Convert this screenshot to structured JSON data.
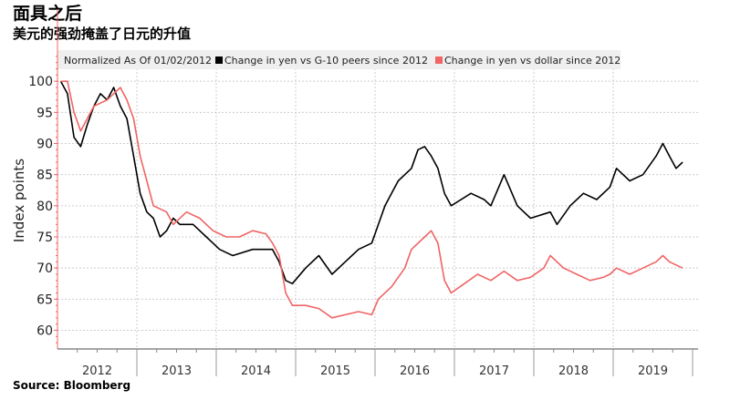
{
  "title": "面具之后",
  "subtitle": "美元的强劲掩盖了日元的升值",
  "source": "Source: Bloomberg",
  "chart_data": {
    "type": "line",
    "title": "面具之后",
    "subtitle": "美元的强劲掩盖了日元的升值",
    "ylabel": "Index points",
    "xlabel": "",
    "legend_note": "Normalized As Of 01/02/2012",
    "legend_position": "top",
    "ylim": [
      57,
      105
    ],
    "yticks": [
      60,
      65,
      70,
      75,
      80,
      85,
      90,
      95,
      100
    ],
    "xticks": [
      "2012",
      "2013",
      "2014",
      "2015",
      "2016",
      "2017",
      "2018",
      "2019"
    ],
    "xlim": [
      "2012-01",
      "2019-11"
    ],
    "grid": true,
    "series": [
      {
        "name": "Change in yen vs G-10 peers since 2012",
        "color": "#000000",
        "points": [
          [
            "2012-01",
            100
          ],
          [
            "2012-02",
            98
          ],
          [
            "2012-03",
            91
          ],
          [
            "2012-04",
            89.5
          ],
          [
            "2012-05",
            93
          ],
          [
            "2012-06",
            96
          ],
          [
            "2012-07",
            98
          ],
          [
            "2012-08",
            97
          ],
          [
            "2012-09",
            99
          ],
          [
            "2012-10",
            96
          ],
          [
            "2012-11",
            94
          ],
          [
            "2012-12",
            88
          ],
          [
            "2013-01",
            82
          ],
          [
            "2013-02",
            79
          ],
          [
            "2013-03",
            78
          ],
          [
            "2013-04",
            75
          ],
          [
            "2013-05",
            76
          ],
          [
            "2013-06",
            78
          ],
          [
            "2013-07",
            77
          ],
          [
            "2013-09",
            77
          ],
          [
            "2013-11",
            75
          ],
          [
            "2013-12",
            74
          ],
          [
            "2014-01",
            73
          ],
          [
            "2014-03",
            72
          ],
          [
            "2014-06",
            73
          ],
          [
            "2014-09",
            73
          ],
          [
            "2014-10",
            71
          ],
          [
            "2014-11",
            68
          ],
          [
            "2014-12",
            67.5
          ],
          [
            "2015-02",
            70
          ],
          [
            "2015-04",
            72
          ],
          [
            "2015-06",
            69
          ],
          [
            "2015-08",
            71
          ],
          [
            "2015-10",
            73
          ],
          [
            "2015-12",
            74
          ],
          [
            "2016-02",
            80
          ],
          [
            "2016-04",
            84
          ],
          [
            "2016-06",
            86
          ],
          [
            "2016-07",
            89
          ],
          [
            "2016-08",
            89.5
          ],
          [
            "2016-09",
            88
          ],
          [
            "2016-10",
            86
          ],
          [
            "2016-11",
            82
          ],
          [
            "2016-12",
            80
          ],
          [
            "2017-03",
            82
          ],
          [
            "2017-05",
            81
          ],
          [
            "2017-06",
            80
          ],
          [
            "2017-08",
            85
          ],
          [
            "2017-10",
            80
          ],
          [
            "2017-12",
            78
          ],
          [
            "2018-03",
            79
          ],
          [
            "2018-04",
            77
          ],
          [
            "2018-06",
            80
          ],
          [
            "2018-08",
            82
          ],
          [
            "2018-10",
            81
          ],
          [
            "2018-12",
            83
          ],
          [
            "2019-01",
            86
          ],
          [
            "2019-03",
            84
          ],
          [
            "2019-05",
            85
          ],
          [
            "2019-07",
            88
          ],
          [
            "2019-08",
            90
          ],
          [
            "2019-09",
            88
          ],
          [
            "2019-10",
            86
          ],
          [
            "2019-11",
            87
          ]
        ]
      },
      {
        "name": "Change in yen vs dollar since 2012",
        "color": "#f06464",
        "points": [
          [
            "2012-01",
            100
          ],
          [
            "2012-02",
            100
          ],
          [
            "2012-03",
            95
          ],
          [
            "2012-04",
            92
          ],
          [
            "2012-05",
            94
          ],
          [
            "2012-06",
            96
          ],
          [
            "2012-08",
            97
          ],
          [
            "2012-09",
            98
          ],
          [
            "2012-10",
            99
          ],
          [
            "2012-11",
            97
          ],
          [
            "2012-12",
            94
          ],
          [
            "2013-01",
            88
          ],
          [
            "2013-02",
            84
          ],
          [
            "2013-03",
            80
          ],
          [
            "2013-05",
            79
          ],
          [
            "2013-06",
            77
          ],
          [
            "2013-08",
            79
          ],
          [
            "2013-10",
            78
          ],
          [
            "2013-12",
            76
          ],
          [
            "2014-02",
            75
          ],
          [
            "2014-04",
            75
          ],
          [
            "2014-06",
            76
          ],
          [
            "2014-08",
            75.5
          ],
          [
            "2014-09",
            74
          ],
          [
            "2014-10",
            72
          ],
          [
            "2014-11",
            66
          ],
          [
            "2014-12",
            64
          ],
          [
            "2015-02",
            64
          ],
          [
            "2015-04",
            63.5
          ],
          [
            "2015-06",
            62
          ],
          [
            "2015-08",
            62.5
          ],
          [
            "2015-10",
            63
          ],
          [
            "2015-12",
            62.5
          ],
          [
            "2016-01",
            65
          ],
          [
            "2016-03",
            67
          ],
          [
            "2016-05",
            70
          ],
          [
            "2016-06",
            73
          ],
          [
            "2016-08",
            75
          ],
          [
            "2016-09",
            76
          ],
          [
            "2016-10",
            74
          ],
          [
            "2016-11",
            68
          ],
          [
            "2016-12",
            66
          ],
          [
            "2017-02",
            67.5
          ],
          [
            "2017-04",
            69
          ],
          [
            "2017-06",
            68
          ],
          [
            "2017-08",
            69.5
          ],
          [
            "2017-10",
            68
          ],
          [
            "2017-12",
            68.5
          ],
          [
            "2018-02",
            70
          ],
          [
            "2018-03",
            72
          ],
          [
            "2018-05",
            70
          ],
          [
            "2018-07",
            69
          ],
          [
            "2018-09",
            68
          ],
          [
            "2018-11",
            68.5
          ],
          [
            "2018-12",
            69
          ],
          [
            "2019-01",
            70
          ],
          [
            "2019-03",
            69
          ],
          [
            "2019-05",
            70
          ],
          [
            "2019-07",
            71
          ],
          [
            "2019-08",
            72
          ],
          [
            "2019-09",
            71
          ],
          [
            "2019-10",
            70.5
          ],
          [
            "2019-11",
            70
          ]
        ]
      }
    ]
  }
}
